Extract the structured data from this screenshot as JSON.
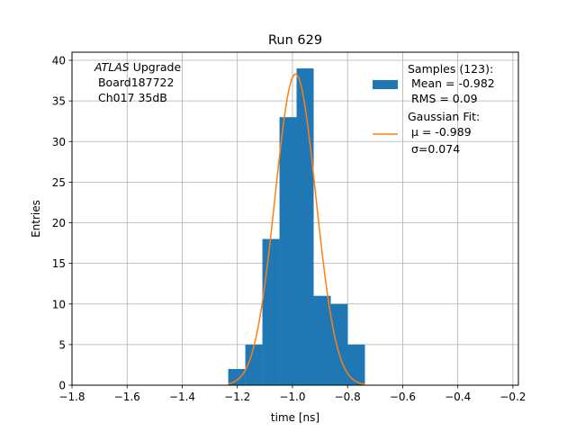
{
  "chart_data": {
    "type": "bar",
    "title": "Run 629",
    "xlabel": "time [ns]",
    "ylabel": "Entries",
    "xlim": [
      -1.8,
      -0.18
    ],
    "ylim": [
      0,
      41
    ],
    "xticks": [
      -1.8,
      -1.6,
      -1.4,
      -1.2,
      -1.0,
      -0.8,
      -0.6,
      -0.4,
      -0.2
    ],
    "yticks": [
      0,
      5,
      10,
      15,
      20,
      25,
      30,
      35,
      40
    ],
    "xtick_labels": [
      "−1.8",
      "−1.6",
      "−1.4",
      "−1.2",
      "−1.0",
      "−0.8",
      "−0.6",
      "−0.4",
      "−0.2"
    ],
    "ytick_labels": [
      "0",
      "5",
      "10",
      "15",
      "20",
      "25",
      "30",
      "35",
      "40"
    ],
    "grid": true,
    "legend_position": "top-right",
    "histogram": {
      "bin_edges": [
        -1.233,
        -1.171,
        -1.109,
        -1.047,
        -0.985,
        -0.923,
        -0.861,
        -0.799,
        -0.737
      ],
      "counts": [
        2,
        5,
        18,
        33,
        39,
        11,
        10,
        5
      ],
      "color": "#1f77b4"
    },
    "fit": {
      "type": "gaussian",
      "mu": -0.989,
      "sigma": 0.074,
      "amplitude": 38.3,
      "x_range": [
        -1.233,
        -0.737
      ],
      "color": "#ff7f0e"
    },
    "annotation": {
      "italic": "ATLAS",
      "rest": " Upgrade",
      "line2": " Board187722",
      "line3": " Ch017 35dB"
    },
    "legend": {
      "hist_lines": [
        "Samples (123):",
        " Mean = -0.982",
        " RMS = 0.09"
      ],
      "fit_lines": [
        "Gaussian Fit:",
        " μ = -0.989",
        " σ=0.074"
      ]
    }
  }
}
